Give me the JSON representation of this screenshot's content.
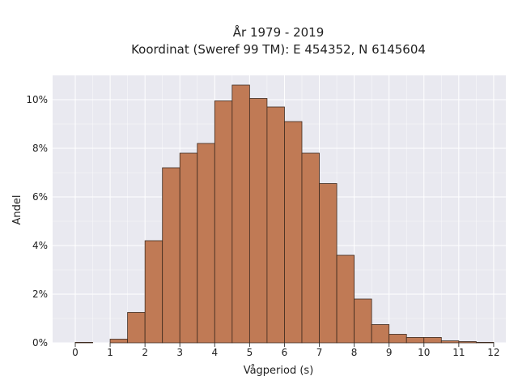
{
  "chart_data": {
    "type": "bar",
    "title": "År 1979 - 2019",
    "subtitle": "Koordinat (Sweref 99 TM): E 454352, N 6145604",
    "xlabel": "Vågperiod (s)",
    "ylabel": "Andel",
    "xlim": [
      -0.65,
      12.35
    ],
    "ylim": [
      0,
      11.0
    ],
    "x_ticks": [
      0,
      1,
      2,
      3,
      4,
      5,
      6,
      7,
      8,
      9,
      10,
      11,
      12
    ],
    "y_ticks": [
      0,
      2,
      4,
      6,
      8,
      10
    ],
    "y_tick_labels": [
      "0%",
      "2%",
      "4%",
      "6%",
      "8%",
      "10%"
    ],
    "bin_width": 0.5,
    "bins": [
      {
        "start": 0.0,
        "value": 0.02
      },
      {
        "start": 0.5,
        "value": 0.0
      },
      {
        "start": 1.0,
        "value": 0.15
      },
      {
        "start": 1.5,
        "value": 1.25
      },
      {
        "start": 2.0,
        "value": 4.2
      },
      {
        "start": 2.5,
        "value": 7.2
      },
      {
        "start": 3.0,
        "value": 7.8
      },
      {
        "start": 3.5,
        "value": 8.2
      },
      {
        "start": 4.0,
        "value": 9.95
      },
      {
        "start": 4.5,
        "value": 10.6
      },
      {
        "start": 5.0,
        "value": 10.05
      },
      {
        "start": 5.5,
        "value": 9.7
      },
      {
        "start": 6.0,
        "value": 9.1
      },
      {
        "start": 6.5,
        "value": 7.8
      },
      {
        "start": 7.0,
        "value": 6.55
      },
      {
        "start": 7.5,
        "value": 3.6
      },
      {
        "start": 8.0,
        "value": 1.8
      },
      {
        "start": 8.5,
        "value": 0.75
      },
      {
        "start": 9.0,
        "value": 0.35
      },
      {
        "start": 9.5,
        "value": 0.22
      },
      {
        "start": 10.0,
        "value": 0.22
      },
      {
        "start": 10.5,
        "value": 0.08
      },
      {
        "start": 11.0,
        "value": 0.05
      },
      {
        "start": 11.5,
        "value": 0.02
      }
    ],
    "bar_color": "#c07a55",
    "bar_edge_color": "#3d2a1e",
    "plot_background": "#e9e9f0",
    "grid": true,
    "grid_color": "#ffffff"
  }
}
